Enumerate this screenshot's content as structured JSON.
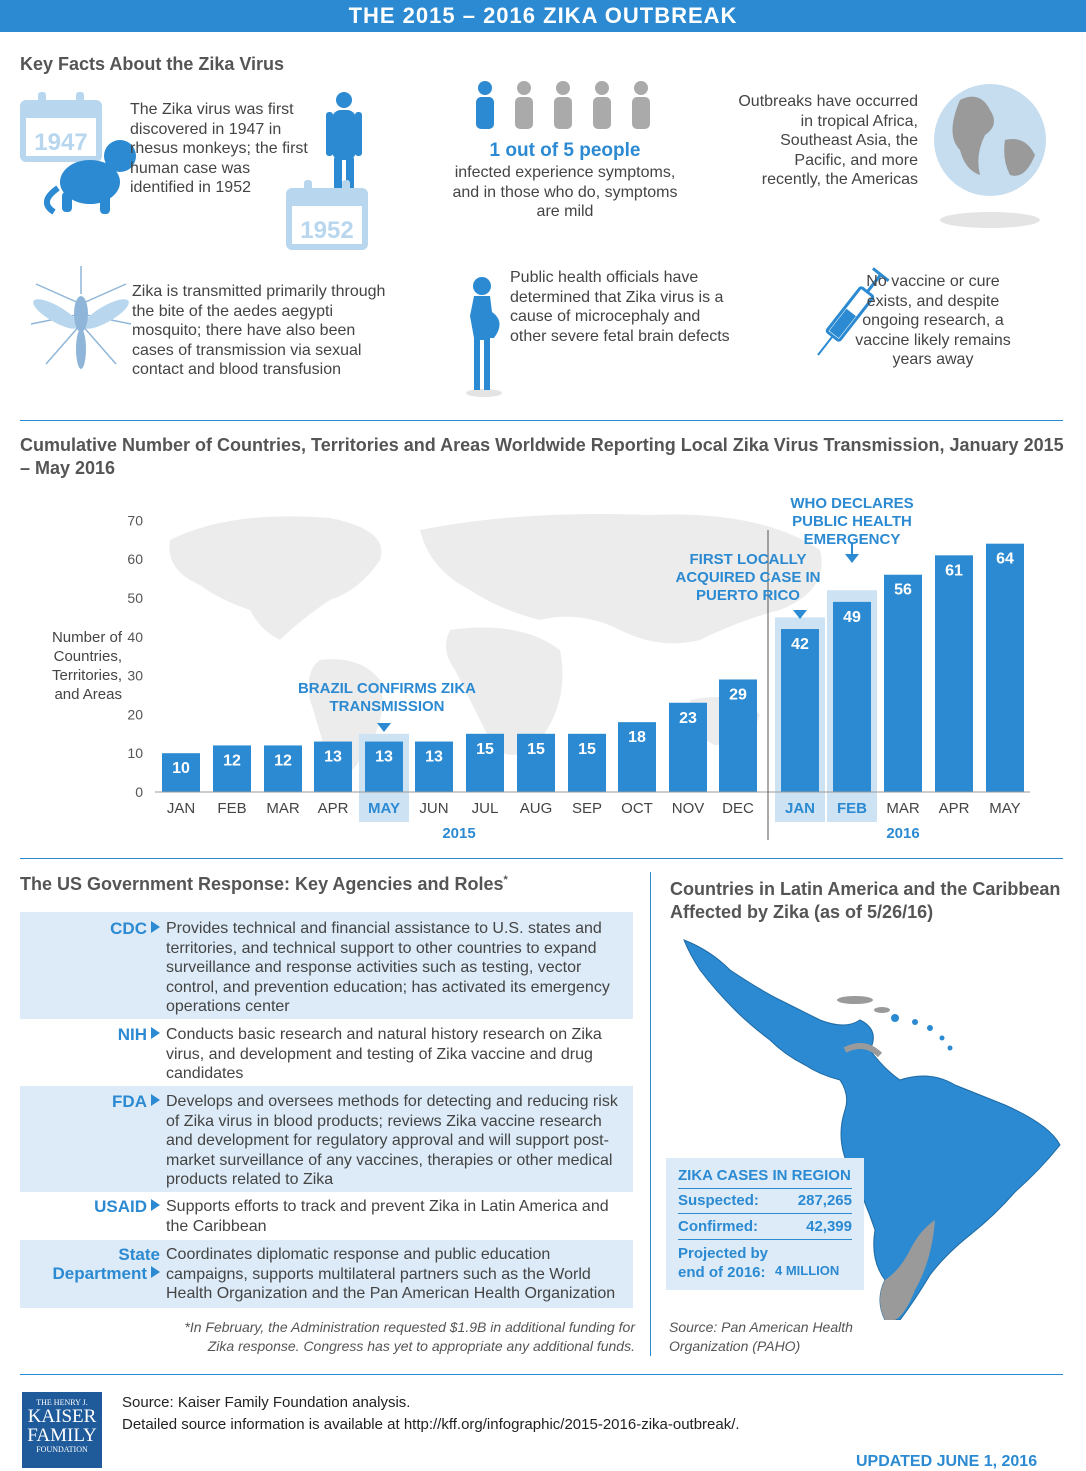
{
  "banner": "THE 2015 – 2016 ZIKA OUTBREAK",
  "key_facts": {
    "heading": "Key Facts About the Zika Virus",
    "year_1947": "1947",
    "year_1952": "1952",
    "discovery_text": "The Zika virus was first discovered in 1947 in rhesus monkeys; the first human case was identified in 1952",
    "ratio_highlight": "1 out of 5 people",
    "ratio_text": "infected experience symptoms, and in those who do, symptoms are mild",
    "outbreaks_text": "Outbreaks have occurred in tropical Africa, Southeast Asia, the Pacific, and more recently, the Americas",
    "transmission_text": "Zika is transmitted primarily through the bite of the aedes aegypti mosquito; there have also been cases of transmission via sexual contact and blood transfusion",
    "microcephaly_text": "Public health officials have determined that Zika virus is a cause of microcephaly and other severe fetal brain defects",
    "vaccine_text": "No vaccine or cure exists, and despite ongoing research, a vaccine likely remains years away"
  },
  "chart_data": {
    "type": "bar",
    "title": "Cumulative Number of Countries, Territories and Areas Worldwide Reporting Local Zika Virus Transmission, January 2015 – May 2016",
    "ylabel": "Number of Countries, Territories, and Areas",
    "xlabel": "",
    "ylim": [
      0,
      70
    ],
    "yticks": [
      0,
      10,
      20,
      30,
      40,
      50,
      60,
      70
    ],
    "categories": [
      "JAN",
      "FEB",
      "MAR",
      "APR",
      "MAY",
      "JUN",
      "JUL",
      "AUG",
      "SEP",
      "OCT",
      "NOV",
      "DEC",
      "JAN",
      "FEB",
      "MAR",
      "APR",
      "MAY"
    ],
    "values": [
      10,
      12,
      12,
      13,
      13,
      13,
      15,
      15,
      15,
      18,
      23,
      29,
      42,
      49,
      56,
      61,
      64
    ],
    "year_labels": [
      "2015",
      "2016"
    ],
    "annotations": [
      {
        "month_index": 4,
        "text": "BRAZIL CONFIRMS ZIKA TRANSMISSION"
      },
      {
        "month_index": 12,
        "text": "FIRST LOCALLY ACQUIRED CASE IN PUERTO RICO"
      },
      {
        "month_index": 13,
        "text": "WHO DECLARES PUBLIC HEALTH EMERGENCY"
      }
    ],
    "highlighted_indices": [
      4,
      12,
      13
    ],
    "colors": {
      "bar": "#2b8ad1",
      "highlight": "#cde2f3",
      "map": "#ececec"
    }
  },
  "us_response": {
    "heading": "The US Government Response: Key Agencies and Roles",
    "asterisk": "*",
    "agencies": [
      {
        "name": "CDC",
        "desc": "Provides technical and financial assistance to U.S. states and territories, and technical support to other countries to expand surveillance and response activities such as testing, vector control, and prevention education; has activated its emergency operations center"
      },
      {
        "name": "NIH",
        "desc": "Conducts basic research and natural history research on Zika virus, and development and testing of Zika vaccine and drug candidates"
      },
      {
        "name": "FDA",
        "desc": "Develops and oversees methods for detecting and reducing risk of Zika virus in blood products; reviews Zika vaccine research and development for regulatory approval and will support post-market surveillance of any vaccines, therapies or other medical products related to Zika"
      },
      {
        "name": "USAID",
        "desc": "Supports efforts to track and prevent Zika in Latin America and the Caribbean"
      },
      {
        "name": "State Department",
        "desc": "Coordinates diplomatic response and public education campaigns, supports multilateral partners such as the World Health Organization and the Pan American Health Organization"
      }
    ],
    "footnote": "*In February, the Administration requested $1.9B in additional funding for Zika response. Congress has yet to appropriate any additional funds."
  },
  "latin_america": {
    "heading": "Countries in Latin America and the Caribbean Affected by Zika (as of 5/26/16)",
    "cases_title": "ZIKA CASES IN REGION",
    "suspected_label": "Suspected:",
    "suspected_value": "287,265",
    "confirmed_label": "Confirmed:",
    "confirmed_value": "42,399",
    "projected_label": "Projected by end of 2016:",
    "projected_value": "4 MILLION",
    "source": "Source: Pan American Health Organization (PAHO)"
  },
  "footer": {
    "logo_line1": "THE HENRY J.",
    "logo_line2": "KAISER",
    "logo_line3": "FAMILY",
    "logo_line4": "FOUNDATION",
    "source_line": "Source: Kaiser Family Foundation analysis.",
    "detail_line": "Detailed source information is available at http://kff.org/infographic/2015-2016-zika-outbreak/.",
    "updated": "UPDATED JUNE 1, 2016"
  }
}
